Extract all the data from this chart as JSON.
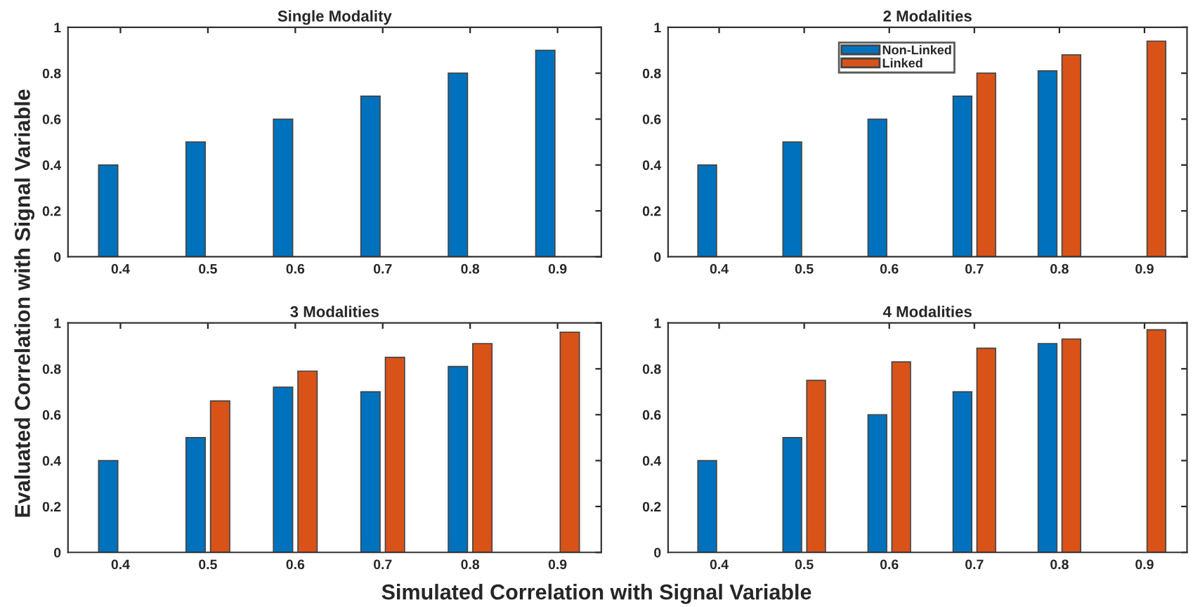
{
  "chart_data": [
    {
      "type": "bar",
      "title": "Single Modality",
      "ylabel": "Evaluated Correlation with Signal Variable",
      "xlabel": "Simulated Correlation with Signal Variable",
      "categories": [
        "0.4",
        "0.5",
        "0.6",
        "0.7",
        "0.8",
        "0.9"
      ],
      "ylim": [
        0,
        1
      ],
      "yticks": [
        0,
        0.2,
        0.4,
        0.6,
        0.8,
        1
      ],
      "grid": false,
      "legend": false,
      "series": [
        {
          "color": "#0072bd",
          "values": [
            0.4,
            0.5,
            0.6,
            0.7,
            0.8,
            0.9
          ]
        },
        {
          "color": "#d95319",
          "values": [
            null,
            null,
            null,
            null,
            null,
            null
          ]
        }
      ]
    },
    {
      "type": "bar",
      "title": "2 Modalities",
      "categories": [
        "0.4",
        "0.5",
        "0.6",
        "0.7",
        "0.8",
        "0.9"
      ],
      "ylim": [
        0,
        1
      ],
      "yticks": [
        0,
        0.2,
        0.4,
        0.6,
        0.8,
        1
      ],
      "grid": false,
      "legend": "top left",
      "series": [
        {
          "name": "Non-Linked",
          "color": "#0072bd",
          "values": [
            0.4,
            0.5,
            0.6,
            0.7,
            0.81,
            null
          ]
        },
        {
          "name": "Linked",
          "color": "#d95319",
          "values": [
            null,
            null,
            null,
            0.8,
            0.88,
            0.94
          ]
        }
      ]
    },
    {
      "type": "bar",
      "title": "3 Modalities",
      "categories": [
        "0.4",
        "0.5",
        "0.6",
        "0.7",
        "0.8",
        "0.9"
      ],
      "ylim": [
        0,
        1
      ],
      "yticks": [
        0,
        0.2,
        0.4,
        0.6,
        0.8,
        1
      ],
      "grid": false,
      "legend": false,
      "series": [
        {
          "color": "#0072bd",
          "values": [
            0.4,
            0.5,
            0.72,
            0.7,
            0.81,
            null
          ]
        },
        {
          "color": "#d95319",
          "values": [
            null,
            0.66,
            0.79,
            0.85,
            0.91,
            0.96
          ]
        }
      ]
    },
    {
      "type": "bar",
      "title": "4 Modalities",
      "categories": [
        "0.4",
        "0.5",
        "0.6",
        "0.7",
        "0.8",
        "0.9"
      ],
      "ylim": [
        0,
        1
      ],
      "yticks": [
        0,
        0.2,
        0.4,
        0.6,
        0.8,
        1
      ],
      "grid": false,
      "legend": false,
      "series": [
        {
          "color": "#0072bd",
          "values": [
            0.4,
            0.5,
            0.6,
            0.7,
            0.91,
            null
          ]
        },
        {
          "color": "#d95319",
          "values": [
            null,
            0.75,
            0.83,
            0.89,
            0.93,
            0.97
          ]
        }
      ]
    }
  ]
}
